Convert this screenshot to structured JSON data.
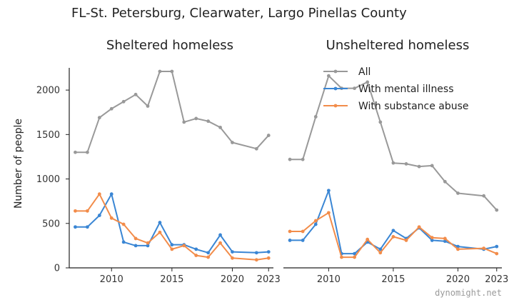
{
  "figure": {
    "title": "FL-St. Petersburg, Clearwater, Largo Pinellas County",
    "ylabel": "Number of people",
    "watermark": "dynomight.net"
  },
  "legend": {
    "placement": "top-right of second panel",
    "entries": [
      "All",
      "With mental illness",
      "With substance abuse"
    ]
  },
  "chart_data": [
    {
      "type": "line",
      "title": "Sheltered homeless",
      "xlabel": "",
      "ylabel": "Number of people",
      "xlim": [
        2006.5,
        2023.4
      ],
      "ylim": [
        0,
        2250
      ],
      "x_ticks": [
        2010,
        2015,
        2020,
        2023
      ],
      "y_ticks": [
        0,
        500,
        1000,
        1500,
        2000
      ],
      "grid": false,
      "series": [
        {
          "name": "All",
          "color": "#999999",
          "x": [
            2007,
            2008,
            2009,
            2010,
            2011,
            2012,
            2013,
            2014,
            2015,
            2016,
            2017,
            2018,
            2019,
            2020,
            2022,
            2023
          ],
          "y": [
            1300,
            1300,
            1690,
            1790,
            1870,
            1950,
            1820,
            2210,
            2210,
            1640,
            1680,
            1650,
            1580,
            1410,
            1340,
            1490
          ]
        },
        {
          "name": "With mental illness",
          "color": "#3a86d4",
          "x": [
            2007,
            2008,
            2009,
            2010,
            2011,
            2012,
            2013,
            2014,
            2015,
            2016,
            2017,
            2018,
            2019,
            2020,
            2022,
            2023
          ],
          "y": [
            460,
            460,
            590,
            830,
            290,
            250,
            250,
            510,
            260,
            260,
            210,
            170,
            370,
            180,
            170,
            180
          ]
        },
        {
          "name": "With substance abuse",
          "color": "#f28c4a",
          "x": [
            2007,
            2008,
            2009,
            2010,
            2011,
            2012,
            2013,
            2014,
            2015,
            2016,
            2017,
            2018,
            2019,
            2020,
            2022,
            2023
          ],
          "y": [
            640,
            640,
            830,
            560,
            490,
            330,
            280,
            400,
            210,
            250,
            140,
            120,
            280,
            110,
            90,
            110
          ]
        }
      ]
    },
    {
      "type": "line",
      "title": "Unsheltered homeless",
      "xlabel": "",
      "ylabel": "",
      "xlim": [
        2006.5,
        2023.4
      ],
      "ylim": [
        0,
        2250
      ],
      "x_ticks": [
        2010,
        2015,
        2020,
        2023
      ],
      "y_ticks": [],
      "grid": false,
      "series": [
        {
          "name": "All",
          "color": "#999999",
          "x": [
            2007,
            2008,
            2009,
            2010,
            2011,
            2012,
            2013,
            2014,
            2015,
            2016,
            2017,
            2018,
            2019,
            2020,
            2022,
            2023
          ],
          "y": [
            1220,
            1220,
            1700,
            2160,
            2020,
            2020,
            2090,
            1640,
            1180,
            1170,
            1140,
            1150,
            970,
            840,
            810,
            650
          ]
        },
        {
          "name": "With mental illness",
          "color": "#3a86d4",
          "x": [
            2007,
            2008,
            2009,
            2010,
            2011,
            2012,
            2013,
            2014,
            2015,
            2016,
            2017,
            2018,
            2019,
            2020,
            2022,
            2023
          ],
          "y": [
            310,
            310,
            490,
            870,
            160,
            160,
            290,
            210,
            420,
            330,
            450,
            310,
            300,
            240,
            210,
            240
          ]
        },
        {
          "name": "With substance abuse",
          "color": "#f28c4a",
          "x": [
            2007,
            2008,
            2009,
            2010,
            2011,
            2012,
            2013,
            2014,
            2015,
            2016,
            2017,
            2018,
            2019,
            2020,
            2022,
            2023
          ],
          "y": [
            410,
            410,
            530,
            620,
            120,
            120,
            320,
            170,
            350,
            310,
            460,
            340,
            330,
            210,
            220,
            160
          ]
        }
      ]
    }
  ]
}
